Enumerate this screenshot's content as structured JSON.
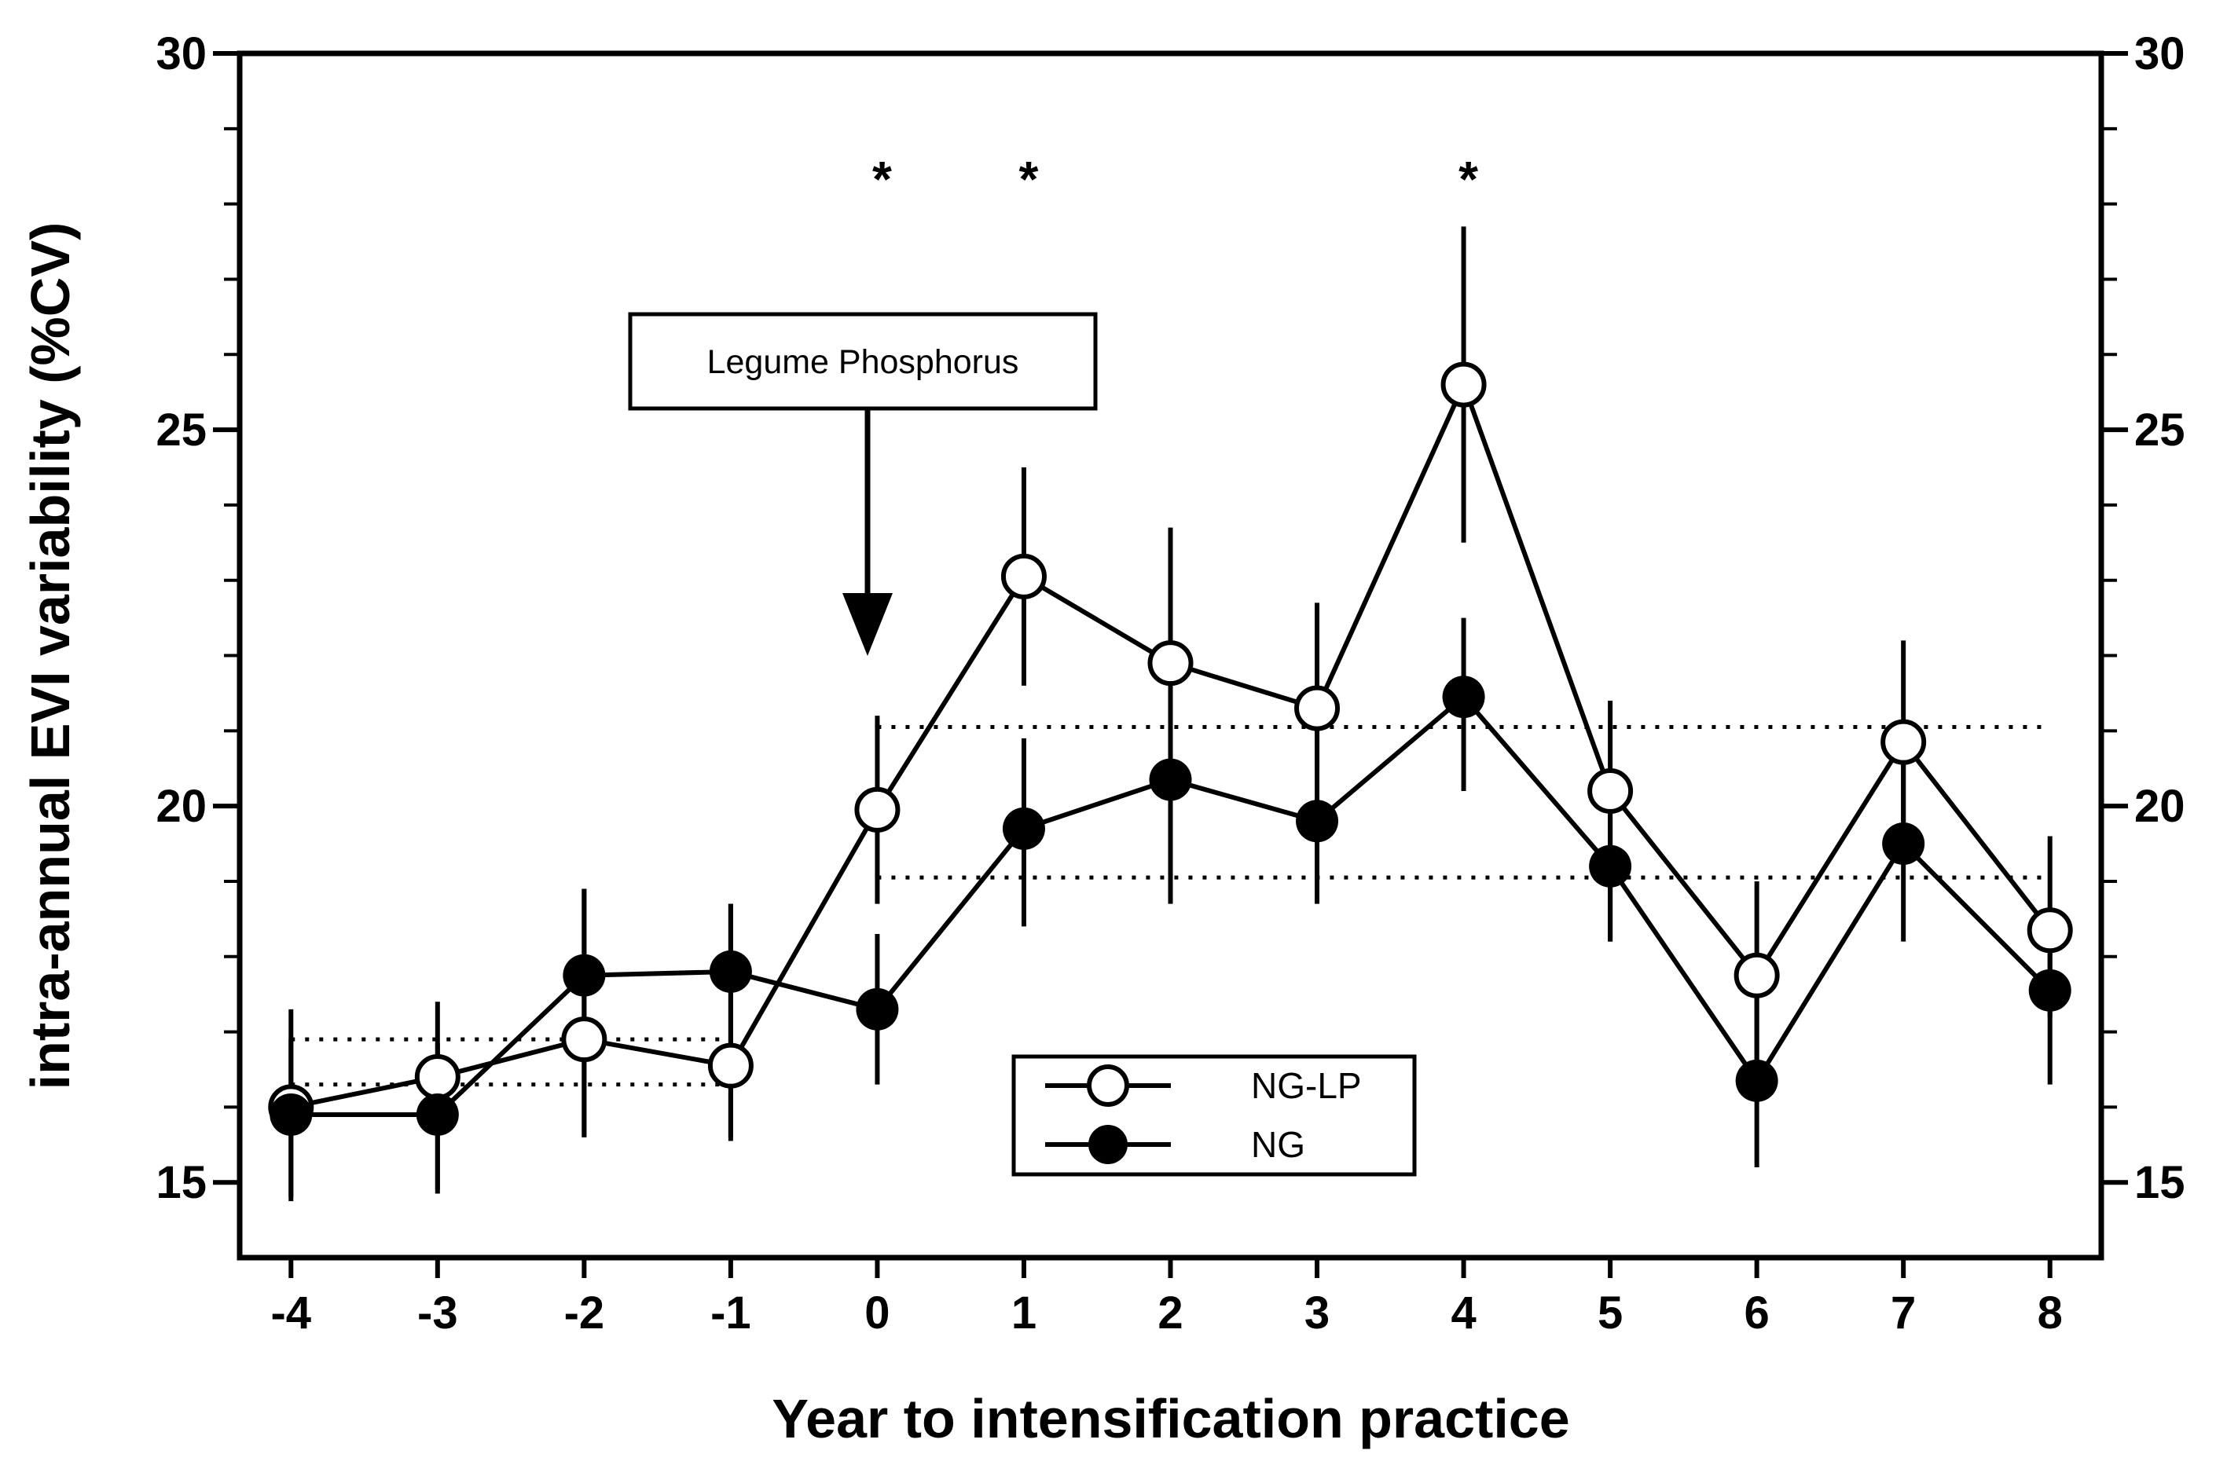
{
  "chart_data": {
    "type": "line",
    "title": "",
    "xlabel": "Year to intensification practice",
    "ylabel": "intra-annual EVI variability (%CV)",
    "x": [
      -4,
      -3,
      -2,
      -1,
      0,
      1,
      2,
      3,
      4,
      5,
      6,
      7,
      8
    ],
    "xlim": [
      -4.35,
      8.35
    ],
    "ylim": [
      14,
      30
    ],
    "yticks": [
      15,
      20,
      25,
      30
    ],
    "series": [
      {
        "name": "NG-LP",
        "marker": "open-circle",
        "values": [
          16.0,
          16.4,
          16.9,
          16.55,
          19.95,
          23.05,
          21.9,
          21.3,
          25.6,
          20.2,
          17.75,
          20.85,
          18.35
        ],
        "err_low": [
          14.8,
          14.9,
          15.6,
          15.6,
          18.7,
          21.6,
          20.4,
          20.5,
          23.5,
          18.2,
          16.3,
          19.4,
          17.2
        ],
        "err_high": [
          17.3,
          17.4,
          18.9,
          18.7,
          21.2,
          24.5,
          23.7,
          22.7,
          27.7,
          21.4,
          19.0,
          22.2,
          19.6
        ]
      },
      {
        "name": "NG",
        "marker": "filled-circle",
        "values": [
          15.9,
          15.9,
          17.75,
          17.8,
          17.3,
          19.7,
          20.35,
          19.8,
          21.45,
          19.2,
          16.35,
          19.5,
          17.55
        ],
        "err_low": [
          14.75,
          14.85,
          15.6,
          15.55,
          16.3,
          18.4,
          18.7,
          18.7,
          20.2,
          18.2,
          15.2,
          18.2,
          16.3
        ],
        "err_high": [
          16.9,
          16.85,
          18.9,
          18.7,
          18.3,
          20.9,
          21.9,
          21.1,
          22.5,
          20.3,
          17.5,
          20.8,
          18.6
        ]
      }
    ],
    "reference_lines": [
      {
        "y": 16.9,
        "x_from": -4,
        "x_to": -1
      },
      {
        "y": 16.3,
        "x_from": -4,
        "x_to": -1
      },
      {
        "y": 21.05,
        "x_from": 0,
        "x_to": 8
      },
      {
        "y": 19.05,
        "x_from": 0,
        "x_to": 8
      }
    ],
    "significance_markers": [
      {
        "x": 0,
        "label": "*"
      },
      {
        "x": 1,
        "label": "*"
      },
      {
        "x": 4,
        "label": "*"
      }
    ],
    "annotation": {
      "text": "Legume Phosphorus",
      "points_to_x": 0
    },
    "legend": {
      "position": "bottom-center",
      "entries": [
        "NG-LP",
        "NG"
      ]
    }
  }
}
